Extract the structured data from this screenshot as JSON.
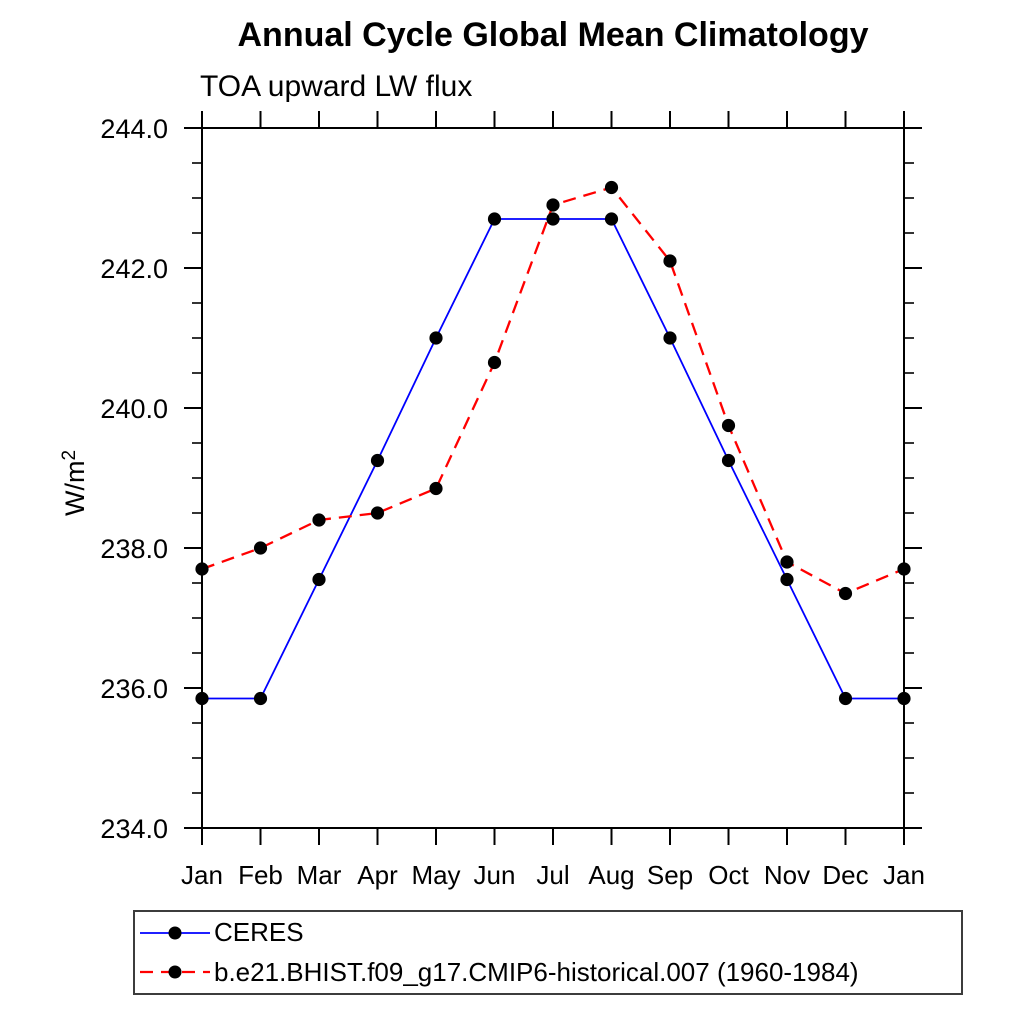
{
  "header": {
    "title": "Annual Cycle Global Mean Climatology",
    "subtitle": "TOA upward LW flux"
  },
  "chart_data": {
    "type": "line",
    "title": "Annual Cycle Global Mean Climatology",
    "subtitle": "TOA upward LW flux",
    "xlabel": "",
    "ylabel": "W/m²",
    "ylabel_base": "W/m",
    "ylabel_sup": "2",
    "x_categories": [
      "Jan",
      "Feb",
      "Mar",
      "Apr",
      "May",
      "Jun",
      "Jul",
      "Aug",
      "Sep",
      "Oct",
      "Nov",
      "Dec",
      "Jan"
    ],
    "ylim": [
      234.0,
      244.0
    ],
    "ytick_interval": 2.0,
    "ytick_minor_interval": 0.5,
    "ytick_labels": [
      "234.0",
      "236.0",
      "238.0",
      "240.0",
      "242.0",
      "244.0"
    ],
    "grid": false,
    "legend_position": "bottom-left",
    "axis_color": "#000000",
    "marker_color": "#000000",
    "series": [
      {
        "name": "CERES",
        "color": "#0000ff",
        "line_style": "solid",
        "marker": "filled-circle",
        "values": [
          235.85,
          235.85,
          237.55,
          239.25,
          241.0,
          242.7,
          242.7,
          242.7,
          241.0,
          239.25,
          237.55,
          235.85,
          235.85
        ]
      },
      {
        "name": "b.e21.BHIST.f09_g17.CMIP6-historical.007 (1960-1984)",
        "color": "#ff0000",
        "line_style": "dashed",
        "marker": "filled-circle",
        "values": [
          237.7,
          238.0,
          238.4,
          238.5,
          238.85,
          240.65,
          242.9,
          243.15,
          242.1,
          239.75,
          237.8,
          237.35,
          237.7
        ]
      }
    ]
  }
}
